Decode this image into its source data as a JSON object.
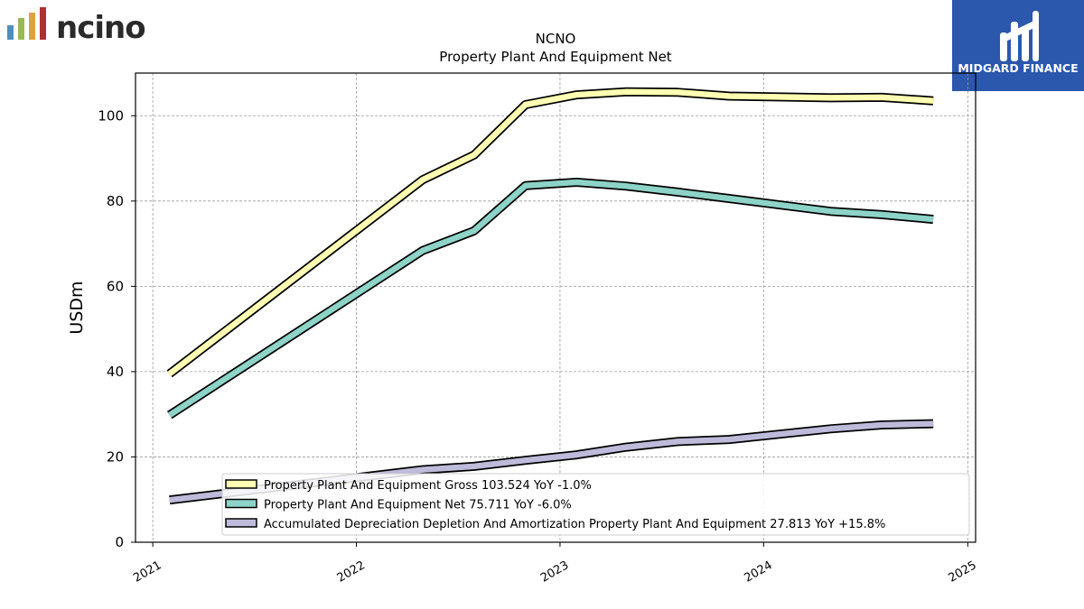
{
  "brand": {
    "left_logo_text": "ncino",
    "right_logo_text": "MIDGARD FINANCE",
    "right_logo_bg": "#2b57ad"
  },
  "chart_data": {
    "type": "line",
    "title": "NCNO",
    "subtitle": "Property Plant And Equipment Net",
    "ylabel": "USDm",
    "xlabel": "",
    "ylim": [
      0,
      110
    ],
    "yticks": [
      0,
      20,
      40,
      60,
      80,
      100
    ],
    "xlim": [
      "2020-12-01",
      "2025-01-15"
    ],
    "xticks": [
      "2021",
      "2022",
      "2023",
      "2024",
      "2025"
    ],
    "grid": true,
    "legend_position": "bottom-right",
    "x": [
      "2021-01-31",
      "2022-04-30",
      "2022-07-31",
      "2022-10-31",
      "2023-01-31",
      "2023-04-30",
      "2023-07-31",
      "2023-10-31",
      "2024-04-30",
      "2024-07-31",
      "2024-10-31"
    ],
    "series": [
      {
        "name": "Property Plant And Equipment Gross",
        "legend": "Property Plant And Equipment Gross  103.524 YoY -1.0%",
        "color": "#ffffb3",
        "values": [
          39.5,
          85.0,
          90.8,
          102.6,
          104.9,
          105.6,
          105.5,
          104.6,
          104.2,
          104.3,
          103.5
        ]
      },
      {
        "name": "Property Plant And Equipment Net",
        "legend": "Property Plant And Equipment Net  75.711 YoY -6.0%",
        "color": "#8dd3c7",
        "values": [
          29.8,
          68.4,
          73.0,
          83.6,
          84.4,
          83.5,
          82.1,
          80.6,
          77.6,
          76.8,
          75.7
        ]
      },
      {
        "name": "Accumulated Depreciation Depletion And Amortization Property Plant And Equipment",
        "legend": "Accumulated Depreciation Depletion And Amortization Property Plant And Equipment  27.813 YoY +15.8%",
        "color": "#bebada",
        "values": [
          9.9,
          17.0,
          17.8,
          19.2,
          20.5,
          22.3,
          23.6,
          24.1,
          26.6,
          27.5,
          27.8
        ]
      }
    ]
  }
}
